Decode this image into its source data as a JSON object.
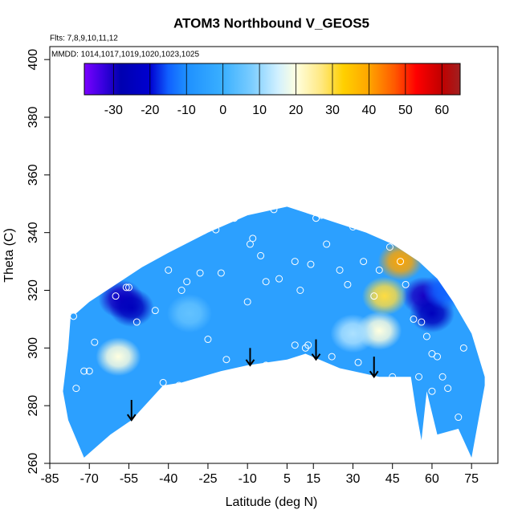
{
  "chart_data": {
    "type": "field",
    "title": "ATOM3 Northbound V_GEOS5",
    "annotations": [
      "Flts: 7,8,9,10,11,12",
      "MMDD: 1014,1017,1019,1020,1023,1025"
    ],
    "x_label": "Latitude (deg N)",
    "y_label": "Theta (C)",
    "xlim": [
      -85,
      85
    ],
    "ylim": [
      260,
      404.5
    ],
    "xticks": [
      -85,
      -70,
      -55,
      -40,
      -25,
      -10,
      5,
      15,
      30,
      45,
      60,
      75
    ],
    "yticks": [
      260,
      280,
      300,
      320,
      340,
      360,
      380,
      400
    ],
    "colorbar": {
      "lim": [
        -38,
        65
      ],
      "ticks": [
        -30,
        -20,
        -10,
        0,
        10,
        20,
        30,
        40,
        50,
        60
      ],
      "colormap": [
        {
          "value": -38,
          "color": "#7b00ff"
        },
        {
          "value": -33,
          "color": "#3a00e0"
        },
        {
          "value": -28,
          "color": "#0000b0"
        },
        {
          "value": -20,
          "color": "#0000d0"
        },
        {
          "value": -15,
          "color": "#1060ff"
        },
        {
          "value": -10,
          "color": "#1e90ff"
        },
        {
          "value": 0,
          "color": "#3ab0ff"
        },
        {
          "value": 8,
          "color": "#7ccdff"
        },
        {
          "value": 15,
          "color": "#d0f0ff"
        },
        {
          "value": 20,
          "color": "#ffffe0"
        },
        {
          "value": 27,
          "color": "#ffe880"
        },
        {
          "value": 33,
          "color": "#ffd000"
        },
        {
          "value": 40,
          "color": "#ffa500"
        },
        {
          "value": 47,
          "color": "#ff5a00"
        },
        {
          "value": 53,
          "color": "#ff0000"
        },
        {
          "value": 60,
          "color": "#c00000"
        },
        {
          "value": 65,
          "color": "#a02020"
        }
      ]
    },
    "field": {
      "base_value": -5,
      "boundary_lat": [
        -77,
        -75,
        -70,
        -60,
        -50,
        -40,
        -25,
        -10,
        5,
        15,
        25,
        35,
        45,
        55,
        62,
        68,
        75,
        80,
        80,
        75,
        70,
        62,
        58,
        56,
        54,
        52,
        40,
        25,
        12,
        5,
        -10,
        -20,
        -35,
        -42,
        -54,
        -62,
        -72,
        -78,
        -80,
        -78
      ],
      "boundary_theta": [
        312,
        312,
        316,
        322,
        328,
        333,
        340,
        346,
        349,
        346,
        343,
        340,
        336,
        330,
        324,
        316,
        305,
        290,
        287,
        262,
        272,
        270,
        285,
        268,
        278,
        290,
        290,
        293,
        298,
        296,
        294,
        292,
        288,
        287,
        275,
        270,
        262,
        275,
        285,
        300
      ],
      "features": [
        {
          "lat": -58,
          "theta": 317,
          "value": -30
        },
        {
          "lat": -54,
          "theta": 314,
          "value": -25
        },
        {
          "lat": -59,
          "theta": 297,
          "value": 20
        },
        {
          "lat": -32,
          "theta": 312,
          "value": 5
        },
        {
          "lat": 57,
          "theta": 318,
          "value": -30
        },
        {
          "lat": 60,
          "theta": 312,
          "value": -25
        },
        {
          "lat": 42,
          "theta": 318,
          "value": 30
        },
        {
          "lat": 48,
          "theta": 330,
          "value": 40
        },
        {
          "lat": 40,
          "theta": 306,
          "value": 20
        },
        {
          "lat": 30,
          "theta": 305,
          "value": 12
        },
        {
          "lat": 65,
          "theta": 320,
          "value": -15
        }
      ]
    },
    "observations": {
      "lat": [
        -76,
        -72,
        -70,
        -75,
        -74,
        -60,
        -56,
        -55,
        -52,
        -45,
        -40,
        -35,
        -33,
        -28,
        -22,
        -20,
        -15,
        -12,
        -8,
        -9,
        -10,
        -5,
        -3,
        0,
        2,
        8,
        10,
        14,
        16,
        18,
        20,
        25,
        28,
        30,
        34,
        38,
        40,
        44,
        48,
        50,
        53,
        56,
        58,
        60,
        62,
        64,
        66,
        70,
        72,
        -18,
        -42,
        -36,
        12,
        13,
        32,
        45,
        60,
        55,
        -68,
        -25,
        8,
        -3,
        22
      ],
      "theta": [
        311,
        292,
        292,
        286,
        261,
        318,
        321,
        321,
        309,
        313,
        327,
        320,
        323,
        326,
        341,
        326,
        345,
        347,
        338,
        336,
        316,
        332,
        323,
        348,
        324,
        330,
        320,
        329,
        345,
        346,
        336,
        327,
        322,
        342,
        330,
        318,
        327,
        335,
        330,
        322,
        310,
        309,
        304,
        298,
        297,
        290,
        286,
        276,
        300,
        296,
        288,
        287,
        300,
        301,
        295,
        290,
        285,
        290,
        302,
        303,
        301,
        294,
        297
      ]
    },
    "arrows": {
      "lat": [
        -54,
        -9,
        16,
        38
      ],
      "theta_from": [
        282,
        300,
        303,
        297
      ],
      "theta_to": [
        275,
        294,
        296,
        290
      ]
    }
  }
}
